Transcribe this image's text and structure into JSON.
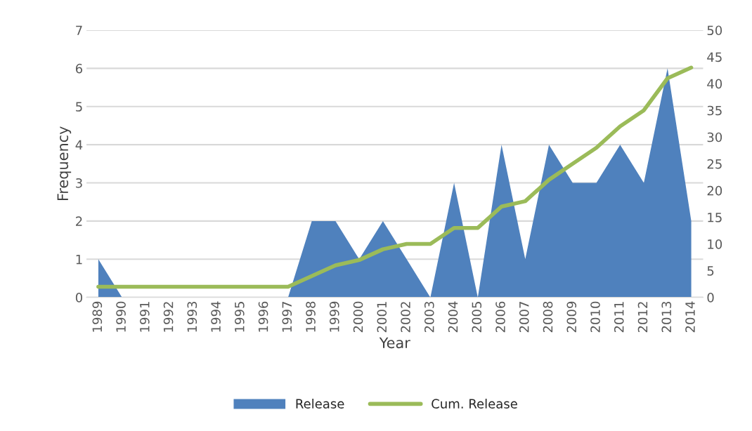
{
  "chart_data": {
    "type": "area",
    "xlabel": "Year",
    "ylabel": "Frequency",
    "categories": [
      "1989",
      "1990",
      "1991",
      "1992",
      "1993",
      "1994",
      "1995",
      "1996",
      "1997",
      "1998",
      "1999",
      "2000",
      "2001",
      "2002",
      "2003",
      "2004",
      "2005",
      "2006",
      "2007",
      "2008",
      "2009",
      "2010",
      "2011",
      "2012",
      "2013",
      "2014"
    ],
    "series": [
      {
        "name": "Release",
        "color": "#4f81bd",
        "values": [
          1,
          0,
          0,
          0,
          0,
          0,
          0,
          0,
          0,
          2,
          2,
          1,
          2,
          1,
          0,
          3,
          0,
          4,
          1,
          4,
          3,
          3,
          4,
          3,
          6,
          2
        ]
      },
      {
        "name": "Cum. Release",
        "type": "line",
        "axis": "y2",
        "color": "#9bbb59",
        "values": [
          2,
          2,
          2,
          2,
          2,
          2,
          2,
          2,
          2,
          4,
          6,
          7,
          9,
          10,
          10,
          13,
          13,
          17,
          18,
          22,
          25,
          28,
          32,
          35,
          41,
          43
        ]
      }
    ],
    "ylim": [
      0,
      7
    ],
    "yticks": [
      0,
      1,
      2,
      3,
      4,
      5,
      6,
      7
    ],
    "y2lim": [
      0,
      50
    ],
    "y2ticks": [
      0,
      5,
      10,
      15,
      20,
      25,
      30,
      35,
      40,
      45,
      50
    ],
    "grid": "y",
    "legend": "bottom",
    "marker": "none",
    "line_style": "solid"
  }
}
